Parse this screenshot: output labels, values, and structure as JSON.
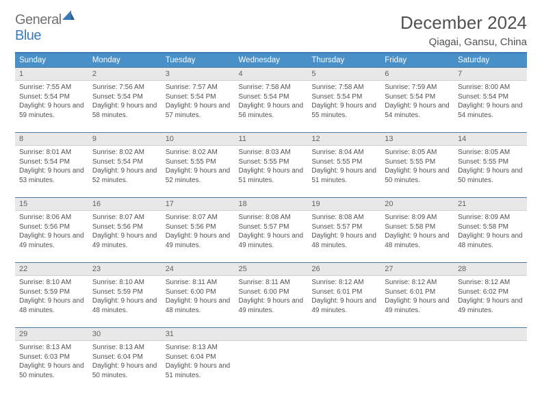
{
  "logo": {
    "general": "General",
    "blue": "Blue"
  },
  "title": "December 2024",
  "location": "Qiagai, Gansu, China",
  "colors": {
    "header_bg": "#4a90c8",
    "header_border_top": "#3a7ab8",
    "row_border": "#4a78a0",
    "daynum_bg": "#e8e8e8",
    "text": "#505050"
  },
  "dayHeaders": [
    "Sunday",
    "Monday",
    "Tuesday",
    "Wednesday",
    "Thursday",
    "Friday",
    "Saturday"
  ],
  "weeks": [
    [
      {
        "num": "1",
        "sunrise": "7:55 AM",
        "sunset": "5:54 PM",
        "daylight": "9 hours and 59 minutes."
      },
      {
        "num": "2",
        "sunrise": "7:56 AM",
        "sunset": "5:54 PM",
        "daylight": "9 hours and 58 minutes."
      },
      {
        "num": "3",
        "sunrise": "7:57 AM",
        "sunset": "5:54 PM",
        "daylight": "9 hours and 57 minutes."
      },
      {
        "num": "4",
        "sunrise": "7:58 AM",
        "sunset": "5:54 PM",
        "daylight": "9 hours and 56 minutes."
      },
      {
        "num": "5",
        "sunrise": "7:58 AM",
        "sunset": "5:54 PM",
        "daylight": "9 hours and 55 minutes."
      },
      {
        "num": "6",
        "sunrise": "7:59 AM",
        "sunset": "5:54 PM",
        "daylight": "9 hours and 54 minutes."
      },
      {
        "num": "7",
        "sunrise": "8:00 AM",
        "sunset": "5:54 PM",
        "daylight": "9 hours and 54 minutes."
      }
    ],
    [
      {
        "num": "8",
        "sunrise": "8:01 AM",
        "sunset": "5:54 PM",
        "daylight": "9 hours and 53 minutes."
      },
      {
        "num": "9",
        "sunrise": "8:02 AM",
        "sunset": "5:54 PM",
        "daylight": "9 hours and 52 minutes."
      },
      {
        "num": "10",
        "sunrise": "8:02 AM",
        "sunset": "5:55 PM",
        "daylight": "9 hours and 52 minutes."
      },
      {
        "num": "11",
        "sunrise": "8:03 AM",
        "sunset": "5:55 PM",
        "daylight": "9 hours and 51 minutes."
      },
      {
        "num": "12",
        "sunrise": "8:04 AM",
        "sunset": "5:55 PM",
        "daylight": "9 hours and 51 minutes."
      },
      {
        "num": "13",
        "sunrise": "8:05 AM",
        "sunset": "5:55 PM",
        "daylight": "9 hours and 50 minutes."
      },
      {
        "num": "14",
        "sunrise": "8:05 AM",
        "sunset": "5:55 PM",
        "daylight": "9 hours and 50 minutes."
      }
    ],
    [
      {
        "num": "15",
        "sunrise": "8:06 AM",
        "sunset": "5:56 PM",
        "daylight": "9 hours and 49 minutes."
      },
      {
        "num": "16",
        "sunrise": "8:07 AM",
        "sunset": "5:56 PM",
        "daylight": "9 hours and 49 minutes."
      },
      {
        "num": "17",
        "sunrise": "8:07 AM",
        "sunset": "5:56 PM",
        "daylight": "9 hours and 49 minutes."
      },
      {
        "num": "18",
        "sunrise": "8:08 AM",
        "sunset": "5:57 PM",
        "daylight": "9 hours and 49 minutes."
      },
      {
        "num": "19",
        "sunrise": "8:08 AM",
        "sunset": "5:57 PM",
        "daylight": "9 hours and 48 minutes."
      },
      {
        "num": "20",
        "sunrise": "8:09 AM",
        "sunset": "5:58 PM",
        "daylight": "9 hours and 48 minutes."
      },
      {
        "num": "21",
        "sunrise": "8:09 AM",
        "sunset": "5:58 PM",
        "daylight": "9 hours and 48 minutes."
      }
    ],
    [
      {
        "num": "22",
        "sunrise": "8:10 AM",
        "sunset": "5:59 PM",
        "daylight": "9 hours and 48 minutes."
      },
      {
        "num": "23",
        "sunrise": "8:10 AM",
        "sunset": "5:59 PM",
        "daylight": "9 hours and 48 minutes."
      },
      {
        "num": "24",
        "sunrise": "8:11 AM",
        "sunset": "6:00 PM",
        "daylight": "9 hours and 48 minutes."
      },
      {
        "num": "25",
        "sunrise": "8:11 AM",
        "sunset": "6:00 PM",
        "daylight": "9 hours and 49 minutes."
      },
      {
        "num": "26",
        "sunrise": "8:12 AM",
        "sunset": "6:01 PM",
        "daylight": "9 hours and 49 minutes."
      },
      {
        "num": "27",
        "sunrise": "8:12 AM",
        "sunset": "6:01 PM",
        "daylight": "9 hours and 49 minutes."
      },
      {
        "num": "28",
        "sunrise": "8:12 AM",
        "sunset": "6:02 PM",
        "daylight": "9 hours and 49 minutes."
      }
    ],
    [
      {
        "num": "29",
        "sunrise": "8:13 AM",
        "sunset": "6:03 PM",
        "daylight": "9 hours and 50 minutes."
      },
      {
        "num": "30",
        "sunrise": "8:13 AM",
        "sunset": "6:04 PM",
        "daylight": "9 hours and 50 minutes."
      },
      {
        "num": "31",
        "sunrise": "8:13 AM",
        "sunset": "6:04 PM",
        "daylight": "9 hours and 51 minutes."
      },
      {
        "empty": true
      },
      {
        "empty": true
      },
      {
        "empty": true
      },
      {
        "empty": true
      }
    ]
  ],
  "labels": {
    "sunrise": "Sunrise: ",
    "sunset": "Sunset: ",
    "daylight": "Daylight: "
  }
}
